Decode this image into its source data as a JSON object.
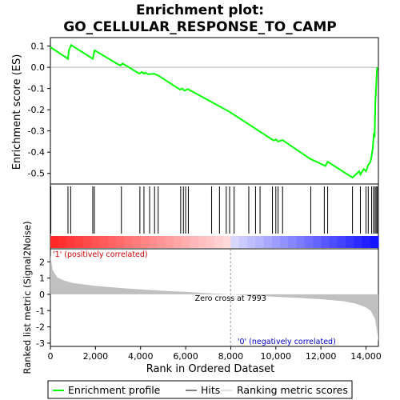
{
  "chart_data": {
    "type": "line",
    "title_line1": "Enrichment plot:",
    "title_line2": "GO_CELLULAR_RESPONSE_TO_CAMP",
    "top_panel": {
      "ylabel": "Enrichment score (ES)",
      "ylim": [
        -0.55,
        0.14
      ],
      "yticks": [
        0.1,
        0.0,
        -0.1,
        -0.2,
        -0.3,
        -0.4,
        -0.5
      ],
      "ytick_labels": [
        "0.1",
        "0.0",
        "-0.1",
        "-0.2",
        "-0.3",
        "-0.4",
        "-0.5"
      ],
      "series": [
        {
          "name": "Enrichment profile",
          "color": "#00ff00",
          "x": [
            0,
            780,
            820,
            920,
            1880,
            1960,
            3100,
            3200,
            3950,
            4050,
            4150,
            4200,
            4350,
            4600,
            4800,
            5750,
            5850,
            5950,
            6100,
            7950,
            9900,
            10000,
            10100,
            10300,
            11500,
            12200,
            12300,
            13400,
            13700,
            13750,
            13900,
            14000,
            14100,
            14200,
            14250,
            14300,
            14350,
            14380,
            14420,
            14450,
            14480,
            14500
          ],
          "y": [
            0.095,
            0.04,
            0.08,
            0.105,
            0.04,
            0.08,
            0.008,
            0.018,
            -0.03,
            -0.022,
            -0.03,
            -0.025,
            -0.033,
            -0.03,
            -0.04,
            -0.105,
            -0.1,
            -0.11,
            -0.103,
            -0.21,
            -0.345,
            -0.34,
            -0.35,
            -0.343,
            -0.43,
            -0.465,
            -0.445,
            -0.52,
            -0.49,
            -0.505,
            -0.48,
            -0.49,
            -0.46,
            -0.445,
            -0.42,
            -0.38,
            -0.31,
            -0.33,
            -0.15,
            -0.09,
            -0.02,
            0.0
          ]
        }
      ]
    },
    "hits": [
      20,
      780,
      900,
      1880,
      1950,
      3150,
      3970,
      4150,
      4400,
      4620,
      4780,
      5780,
      5900,
      6000,
      6120,
      7150,
      7500,
      7800,
      7950,
      8150,
      8800,
      9100,
      9300,
      9850,
      10000,
      10100,
      10300,
      11550,
      12150,
      12300,
      13400,
      13750,
      14000,
      14100,
      14250,
      14330,
      14400,
      14450,
      14500
    ],
    "bottom_panel": {
      "ylabel": "Ranked list metric (Signal2Noise)",
      "ylim": [
        -3.2,
        2.8
      ],
      "yticks": [
        2,
        1,
        0,
        -1,
        -2,
        -3
      ],
      "ytick_labels": [
        "2",
        "1",
        "0",
        "-1",
        "-2",
        "-3"
      ],
      "metric_x": [
        0,
        100,
        300,
        600,
        1000,
        2000,
        3000,
        4000,
        5000,
        6000,
        7000,
        7993,
        9000,
        10000,
        11000,
        12000,
        13000,
        13500,
        14000,
        14200,
        14400,
        14480,
        14550
      ],
      "metric_y": [
        2.4,
        1.5,
        1.05,
        0.85,
        0.7,
        0.52,
        0.4,
        0.3,
        0.22,
        0.15,
        0.07,
        0.0,
        -0.08,
        -0.15,
        -0.22,
        -0.3,
        -0.42,
        -0.55,
        -0.8,
        -1.0,
        -1.5,
        -2.2,
        -2.9
      ],
      "zero_cross_label": "Zero cross at 7993",
      "zero_cross_x": 7993,
      "pos_label": "'1' (positively correlated)",
      "neg_label": "'0' (negatively correlated)"
    },
    "xlabel": "Rank in Ordered Dataset",
    "xlim": [
      0,
      14550
    ],
    "xticks": [
      0,
      2000,
      4000,
      6000,
      8000,
      10000,
      12000,
      14000
    ],
    "xtick_labels": [
      "0",
      "2,000",
      "4,000",
      "6,000",
      "8,000",
      "10,000",
      "12,000",
      "14,000"
    ],
    "legend": {
      "position": "bottom",
      "items": [
        "Enrichment profile",
        "Hits",
        "Ranking metric scores"
      ]
    },
    "colors": {
      "profile": "#00ff00",
      "hits": "#000000",
      "metric_fill": "#c0c0c0",
      "positive": "#ff0000",
      "negative": "#0000ff",
      "zero_line": "#b0b0b0"
    }
  }
}
